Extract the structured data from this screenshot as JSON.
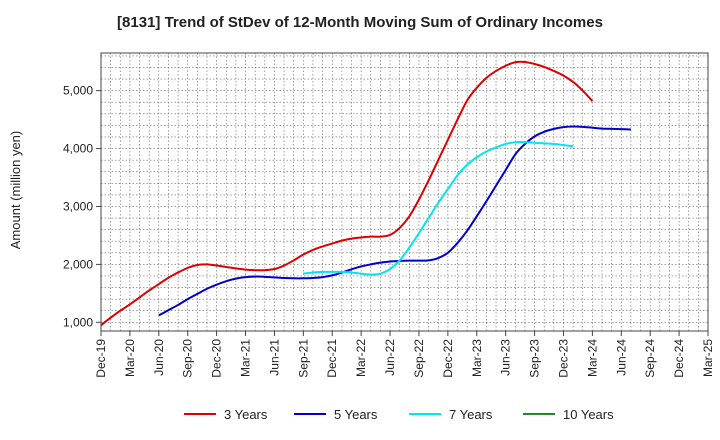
{
  "chart_data": {
    "type": "line",
    "title": "[8131]  Trend of StDev of 12-Month Moving Sum of Ordinary Incomes",
    "ylabel": "Amount (million yen)",
    "xlabel": "",
    "ylim": [
      850,
      5650
    ],
    "yticks": [
      1000,
      2000,
      3000,
      4000,
      5000
    ],
    "ytick_labels": [
      "1,000",
      "2,000",
      "3,000",
      "4,000",
      "5,000"
    ],
    "x_categories": [
      "Dec-19",
      "Mar-20",
      "Jun-20",
      "Sep-20",
      "Dec-20",
      "Mar-21",
      "Jun-21",
      "Sep-21",
      "Dec-21",
      "Mar-22",
      "Jun-22",
      "Sep-22",
      "Dec-22",
      "Mar-23",
      "Jun-23",
      "Sep-23",
      "Dec-23",
      "Mar-24",
      "Jun-24",
      "Sep-24",
      "Dec-24",
      "Mar-25"
    ],
    "grid": true,
    "legend_position": "bottom",
    "series": [
      {
        "name": "3 Years",
        "color": "#dd0000",
        "start_index": 0,
        "values": [
          950,
          1080,
          1200,
          1310,
          1430,
          1550,
          1660,
          1770,
          1860,
          1940,
          1990,
          2000,
          1980,
          1955,
          1930,
          1910,
          1900,
          1900,
          1920,
          1980,
          2070,
          2170,
          2250,
          2310,
          2360,
          2410,
          2445,
          2465,
          2480,
          2480,
          2510,
          2630,
          2830,
          3120,
          3450,
          3800,
          4150,
          4500,
          4830,
          5050,
          5220,
          5340,
          5430,
          5490,
          5495,
          5460,
          5410,
          5340,
          5260,
          5150,
          5000,
          4820
        ]
      },
      {
        "name": "5 Years",
        "color": "#0000cc",
        "start_index": 6,
        "values": [
          1120,
          1210,
          1300,
          1400,
          1490,
          1580,
          1650,
          1710,
          1755,
          1780,
          1790,
          1785,
          1775,
          1765,
          1760,
          1760,
          1765,
          1780,
          1810,
          1860,
          1915,
          1965,
          2000,
          2030,
          2050,
          2060,
          2065,
          2065,
          2070,
          2110,
          2200,
          2370,
          2580,
          2830,
          3090,
          3360,
          3630,
          3900,
          4080,
          4210,
          4290,
          4340,
          4370,
          4380,
          4375,
          4360,
          4345,
          4340,
          4335,
          4330
        ]
      },
      {
        "name": "7 Years",
        "color": "#00e5ee",
        "start_index": 21,
        "values": [
          1840,
          1860,
          1870,
          1870,
          1870,
          1860,
          1840,
          1825,
          1840,
          1920,
          2070,
          2290,
          2540,
          2800,
          3060,
          3300,
          3540,
          3720,
          3850,
          3950,
          4020,
          4080,
          4110,
          4110,
          4100,
          4090,
          4080,
          4060,
          4040
        ]
      },
      {
        "name": "10 Years",
        "color": "#228b22",
        "start_index": 0,
        "values": []
      }
    ]
  }
}
